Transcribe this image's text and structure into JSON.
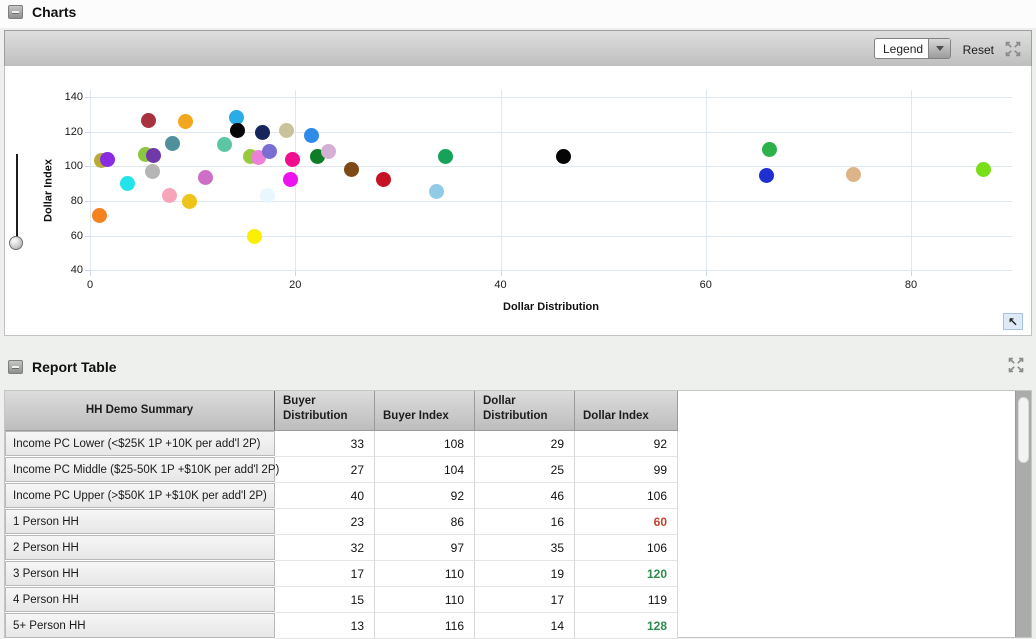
{
  "charts_panel": {
    "title": "Charts",
    "toolbar": {
      "legend_label": "Legend",
      "reset_label": "Reset"
    },
    "corner_button_icon": "↖",
    "icons": {
      "minimize": "minus",
      "expand": "four-outward-arrows",
      "dropdown": "triangle-down",
      "restore": "arrow-up-left"
    }
  },
  "chart_data": {
    "type": "scatter",
    "xlabel": "Dollar Distribution",
    "ylabel": "Dollar Index",
    "xlim": [
      0,
      89.8
    ],
    "ylim": [
      40,
      144
    ],
    "x_ticks": [
      0,
      20,
      40,
      60,
      80
    ],
    "y_ticks": [
      40,
      60,
      80,
      100,
      120,
      140
    ],
    "grid": true,
    "points": [
      {
        "x": 1.1,
        "y": 103.5,
        "color": "#b9ab33"
      },
      {
        "x": 1.7,
        "y": 104.0,
        "color": "#8a2be2"
      },
      {
        "x": 0.9,
        "y": 71.5,
        "color": "#f58220"
      },
      {
        "x": 3.7,
        "y": 90.0,
        "color": "#22e4ea"
      },
      {
        "x": 5.7,
        "y": 126.5,
        "color": "#a8333e"
      },
      {
        "x": 5.4,
        "y": 107.0,
        "color": "#8dc63f"
      },
      {
        "x": 6.2,
        "y": 106.5,
        "color": "#7038a8"
      },
      {
        "x": 6.1,
        "y": 97.0,
        "color": "#b5b5b5"
      },
      {
        "x": 7.7,
        "y": 83.5,
        "color": "#f7a6ba"
      },
      {
        "x": 8.0,
        "y": 113.5,
        "color": "#50909b"
      },
      {
        "x": 9.3,
        "y": 126.0,
        "color": "#f3a71f"
      },
      {
        "x": 9.7,
        "y": 80.0,
        "color": "#eec31a"
      },
      {
        "x": 11.3,
        "y": 93.5,
        "color": "#cd6fc5"
      },
      {
        "x": 13.1,
        "y": 112.5,
        "color": "#5cc6a2"
      },
      {
        "x": 14.3,
        "y": 128.5,
        "color": "#28ade8"
      },
      {
        "x": 14.4,
        "y": 121.0,
        "color": "#050505"
      },
      {
        "x": 15.6,
        "y": 106.0,
        "color": "#97c93d"
      },
      {
        "x": 16.4,
        "y": 105.0,
        "color": "#ea80d8"
      },
      {
        "x": 16.0,
        "y": 59.5,
        "color": "#fbee00"
      },
      {
        "x": 16.8,
        "y": 119.5,
        "color": "#17265a"
      },
      {
        "x": 17.5,
        "y": 108.5,
        "color": "#7b6ed2"
      },
      {
        "x": 17.3,
        "y": 83.5,
        "color": "#e8f6fd"
      },
      {
        "x": 19.1,
        "y": 120.5,
        "color": "#c9c39c"
      },
      {
        "x": 19.7,
        "y": 104.0,
        "color": "#ef0e8e"
      },
      {
        "x": 19.5,
        "y": 92.5,
        "color": "#ee12ee"
      },
      {
        "x": 21.6,
        "y": 118.0,
        "color": "#2f8be8"
      },
      {
        "x": 22.2,
        "y": 106.0,
        "color": "#0f7d28"
      },
      {
        "x": 23.2,
        "y": 108.5,
        "color": "#d4b0d6"
      },
      {
        "x": 25.5,
        "y": 98.5,
        "color": "#7d4a15"
      },
      {
        "x": 28.6,
        "y": 92.5,
        "color": "#c51224"
      },
      {
        "x": 34.6,
        "y": 105.5,
        "color": "#16a358"
      },
      {
        "x": 33.8,
        "y": 85.5,
        "color": "#92cbe8"
      },
      {
        "x": 46.1,
        "y": 105.5,
        "color": "#050505"
      },
      {
        "x": 66.2,
        "y": 109.5,
        "color": "#2bb24a"
      },
      {
        "x": 65.9,
        "y": 94.5,
        "color": "#2030d0"
      },
      {
        "x": 74.4,
        "y": 95.5,
        "color": "#dcb488"
      },
      {
        "x": 87.1,
        "y": 98.5,
        "color": "#7ade16"
      }
    ]
  },
  "report_panel": {
    "title": "Report Table",
    "table": {
      "label_header": "HH Demo Summary",
      "columns": [
        "Buyer Distribution",
        "Buyer Index",
        "Dollar Distribution",
        "Dollar Index"
      ],
      "rows": [
        {
          "label": "Income PC Lower (<$25K 1P +10K per add'l 2P)",
          "values": [
            "33",
            "108",
            "29",
            "92"
          ],
          "flag": null
        },
        {
          "label": "Income PC Middle ($25-50K 1P +$10K per add'l 2P)",
          "values": [
            "27",
            "104",
            "25",
            "99"
          ],
          "flag": null
        },
        {
          "label": "Income PC Upper (>$50K 1P +$10K per add'l 2P)",
          "values": [
            "40",
            "92",
            "46",
            "106"
          ],
          "flag": null
        },
        {
          "label": "1 Person HH",
          "values": [
            "23",
            "86",
            "16",
            "60"
          ],
          "flag": "low"
        },
        {
          "label": "2 Person HH",
          "values": [
            "32",
            "97",
            "35",
            "106"
          ],
          "flag": null
        },
        {
          "label": "3 Person HH",
          "values": [
            "17",
            "110",
            "19",
            "120"
          ],
          "flag": "high"
        },
        {
          "label": "4 Person HH",
          "values": [
            "15",
            "110",
            "17",
            "119"
          ],
          "flag": null
        },
        {
          "label": "5+ Person HH",
          "values": [
            "13",
            "116",
            "14",
            "128"
          ],
          "flag": "high"
        }
      ],
      "flag_colors": {
        "low": "#c0432e",
        "high": "#2e8b50"
      }
    }
  }
}
